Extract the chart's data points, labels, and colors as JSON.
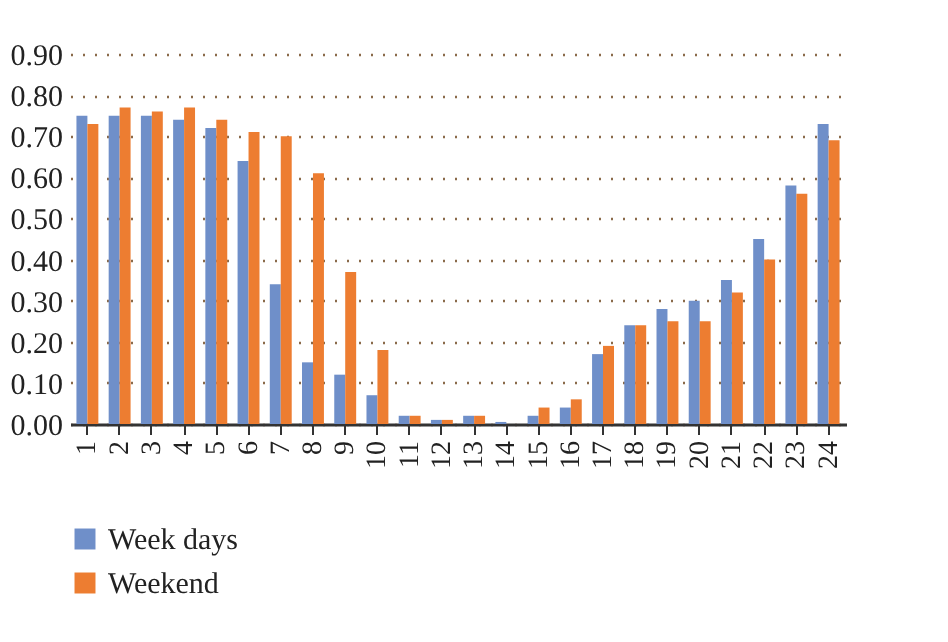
{
  "chart_data": {
    "type": "bar",
    "categories": [
      "1",
      "2",
      "3",
      "4",
      "5",
      "6",
      "7",
      "8",
      "9",
      "10",
      "11",
      "12",
      "13",
      "14",
      "15",
      "16",
      "17",
      "18",
      "19",
      "20",
      "21",
      "22",
      "23",
      "24"
    ],
    "series": [
      {
        "name": "Week days",
        "color": "#6f8fc9",
        "values": [
          0.75,
          0.75,
          0.75,
          0.74,
          0.72,
          0.64,
          0.34,
          0.15,
          0.12,
          0.07,
          0.02,
          0.01,
          0.02,
          0.005,
          0.02,
          0.04,
          0.17,
          0.24,
          0.28,
          0.3,
          0.35,
          0.45,
          0.58,
          0.73
        ]
      },
      {
        "name": "Weekend",
        "color": "#ed7d31",
        "values": [
          0.73,
          0.77,
          0.76,
          0.77,
          0.74,
          0.71,
          0.7,
          0.61,
          0.37,
          0.18,
          0.02,
          0.01,
          0.02,
          0,
          0.04,
          0.06,
          0.19,
          0.24,
          0.25,
          0.25,
          0.32,
          0.4,
          0.56,
          0.69
        ]
      }
    ],
    "ylim": [
      0,
      0.9
    ],
    "yticks": [
      {
        "value": 0,
        "label": "0.00"
      },
      {
        "value": 0.1,
        "label": "0.10"
      },
      {
        "value": 0.2,
        "label": "0.20"
      },
      {
        "value": 0.3,
        "label": "0.30"
      },
      {
        "value": 0.4,
        "label": "0.40"
      },
      {
        "value": 0.5,
        "label": "0.50"
      },
      {
        "value": 0.6,
        "label": "0.60"
      },
      {
        "value": 0.7,
        "label": "0.70"
      },
      {
        "value": 0.8,
        "label": "0.80"
      },
      {
        "value": 0.9,
        "label": "0.90"
      }
    ],
    "grid": "y",
    "legend": "bottom"
  }
}
